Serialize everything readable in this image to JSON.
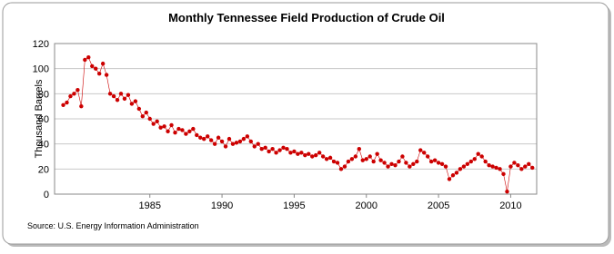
{
  "chart_data": {
    "type": "scatter",
    "title": "Monthly Tennessee Field Production of Crude Oil",
    "y_label": "Thousand Barrels",
    "source": "Source: U.S. Energy Information Administration",
    "color": "#cc0000",
    "grid": true,
    "xlim": [
      1978.4,
      2011.8
    ],
    "xticks": [
      1985,
      1990,
      1995,
      2000,
      2005,
      2010
    ],
    "ylim": [
      0,
      120
    ],
    "yticks": [
      0,
      20,
      40,
      60,
      80,
      100,
      120
    ],
    "x": [
      1979,
      1979.25,
      1979.5,
      1979.75,
      1980,
      1980.25,
      1980.5,
      1980.75,
      1981,
      1981.25,
      1981.5,
      1981.75,
      1982,
      1982.25,
      1982.5,
      1982.75,
      1983,
      1983.25,
      1983.5,
      1983.75,
      1984,
      1984.25,
      1984.5,
      1984.75,
      1985,
      1985.25,
      1985.5,
      1985.75,
      1986,
      1986.25,
      1986.5,
      1986.75,
      1987,
      1987.25,
      1987.5,
      1987.75,
      1988,
      1988.25,
      1988.5,
      1988.75,
      1989,
      1989.25,
      1989.5,
      1989.75,
      1990,
      1990.25,
      1990.5,
      1990.75,
      1991,
      1991.25,
      1991.5,
      1991.75,
      1992,
      1992.25,
      1992.5,
      1992.75,
      1993,
      1993.25,
      1993.5,
      1993.75,
      1994,
      1994.25,
      1994.5,
      1994.75,
      1995,
      1995.25,
      1995.5,
      1995.75,
      1996,
      1996.25,
      1996.5,
      1996.75,
      1997,
      1997.25,
      1997.5,
      1997.75,
      1998,
      1998.25,
      1998.5,
      1998.75,
      1999,
      1999.25,
      1999.5,
      1999.75,
      2000,
      2000.25,
      2000.5,
      2000.75,
      2001,
      2001.25,
      2001.5,
      2001.75,
      2002,
      2002.25,
      2002.5,
      2002.75,
      2003,
      2003.25,
      2003.5,
      2003.75,
      2004,
      2004.25,
      2004.5,
      2004.75,
      2005,
      2005.25,
      2005.5,
      2005.75,
      2006,
      2006.25,
      2006.5,
      2006.75,
      2007,
      2007.25,
      2007.5,
      2007.75,
      2008,
      2008.25,
      2008.5,
      2008.75,
      2009,
      2009.25,
      2009.5,
      2009.75,
      2010,
      2010.25,
      2010.5,
      2010.75,
      2011,
      2011.25,
      2011.5
    ],
    "values": [
      71,
      73,
      78,
      80,
      83,
      70,
      107,
      109,
      102,
      100,
      96,
      104,
      95,
      80,
      78,
      75,
      80,
      76,
      79,
      72,
      74,
      68,
      62,
      65,
      60,
      56,
      58,
      53,
      54,
      50,
      55,
      49,
      52,
      51,
      48,
      50,
      52,
      47,
      45,
      44,
      46,
      43,
      40,
      45,
      42,
      38,
      44,
      40,
      41,
      42,
      44,
      46,
      42,
      38,
      40,
      36,
      37,
      34,
      36,
      33,
      35,
      37,
      36,
      33,
      34,
      32,
      33,
      31,
      32,
      30,
      31,
      33,
      30,
      28,
      29,
      26,
      25,
      20,
      22,
      26,
      28,
      30,
      36,
      27,
      28,
      30,
      26,
      32,
      27,
      25,
      22,
      24,
      23,
      26,
      30,
      25,
      22,
      24,
      26,
      35,
      33,
      30,
      26,
      27,
      25,
      24,
      22,
      12,
      15,
      17,
      20,
      22,
      24,
      26,
      28,
      32,
      30,
      26,
      23,
      22,
      21,
      20,
      16,
      2,
      22,
      25,
      23,
      20,
      22,
      24,
      21
    ]
  }
}
